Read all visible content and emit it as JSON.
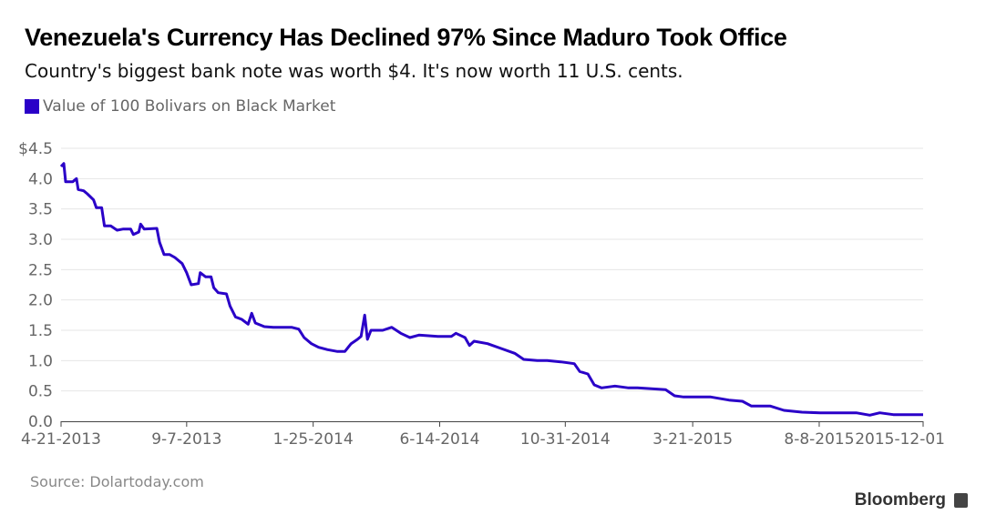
{
  "title": "Venezuela's Currency Has Declined 97% Since Maduro Took Office",
  "subtitle": "Country's biggest bank note was worth $4. It's now worth 11 U.S. cents.",
  "source": "Source: Dolartoday.com",
  "brand": "Bloomberg",
  "chart_data": {
    "type": "line",
    "title": "Venezuela's Currency Has Declined 97% Since Maduro Took Office",
    "xlabel": "",
    "ylabel": "",
    "x_unit": "days since 2013-04-21",
    "xlim": [
      0,
      954
    ],
    "ylim": [
      0,
      4.5
    ],
    "grid": true,
    "legend_placement": "top-left",
    "color": "#2a00c8",
    "yticks": [
      {
        "v": 0,
        "label": "0.0"
      },
      {
        "v": 0.5,
        "label": "0.5"
      },
      {
        "v": 1,
        "label": "1.0"
      },
      {
        "v": 1.5,
        "label": "1.5"
      },
      {
        "v": 2,
        "label": "2.0"
      },
      {
        "v": 2.5,
        "label": "2.5"
      },
      {
        "v": 3,
        "label": "3.0"
      },
      {
        "v": 3.5,
        "label": "3.5"
      },
      {
        "v": 4,
        "label": "4.0"
      },
      {
        "v": 4.5,
        "label": "$4.5"
      }
    ],
    "xticks": [
      {
        "v": 0,
        "label": "4-21-2013"
      },
      {
        "v": 139,
        "label": "9-7-2013"
      },
      {
        "v": 279,
        "label": "1-25-2014"
      },
      {
        "v": 419,
        "label": "6-14-2014"
      },
      {
        "v": 558,
        "label": "10-31-2014"
      },
      {
        "v": 699,
        "label": "3-21-2015"
      },
      {
        "v": 839,
        "label": "8-8-2015"
      },
      {
        "v": 954,
        "label": "2015-12-01"
      }
    ],
    "series": [
      {
        "name": "Value of 100 Bolivars on Black Market",
        "x": [
          0,
          3,
          5,
          13,
          17,
          19,
          25,
          29,
          36,
          39,
          45,
          48,
          55,
          62,
          69,
          77,
          80,
          86,
          88,
          92,
          106,
          109,
          114,
          120,
          126,
          134,
          139,
          144,
          152,
          154,
          160,
          166,
          169,
          174,
          183,
          187,
          193,
          200,
          207,
          211,
          215,
          225,
          235,
          255,
          263,
          269,
          277,
          285,
          295,
          306,
          314,
          321,
          328,
          332,
          336,
          339,
          343,
          356,
          366,
          376,
          386,
          396,
          417,
          432,
          437,
          447,
          452,
          457,
          472,
          487,
          502,
          512,
          527,
          538,
          553,
          568,
          574,
          583,
          590,
          598,
          613,
          628,
          638,
          669,
          679,
          689,
          699,
          719,
          739,
          754,
          764,
          785,
          800,
          820,
          840,
          880,
          895,
          906,
          921,
          954
        ],
        "values": [
          4.2,
          4.25,
          3.95,
          3.95,
          4.0,
          3.82,
          3.8,
          3.75,
          3.65,
          3.52,
          3.52,
          3.22,
          3.22,
          3.15,
          3.17,
          3.17,
          3.08,
          3.12,
          3.25,
          3.17,
          3.18,
          2.95,
          2.75,
          2.75,
          2.7,
          2.6,
          2.45,
          2.25,
          2.27,
          2.45,
          2.38,
          2.38,
          2.2,
          2.12,
          2.1,
          1.9,
          1.72,
          1.68,
          1.6,
          1.78,
          1.62,
          1.56,
          1.55,
          1.55,
          1.52,
          1.38,
          1.28,
          1.22,
          1.18,
          1.15,
          1.15,
          1.28,
          1.35,
          1.4,
          1.75,
          1.35,
          1.5,
          1.5,
          1.55,
          1.45,
          1.38,
          1.42,
          1.4,
          1.4,
          1.45,
          1.38,
          1.25,
          1.32,
          1.28,
          1.2,
          1.12,
          1.02,
          1.0,
          1.0,
          0.98,
          0.95,
          0.82,
          0.78,
          0.6,
          0.55,
          0.58,
          0.55,
          0.55,
          0.52,
          0.42,
          0.4,
          0.4,
          0.4,
          0.35,
          0.33,
          0.25,
          0.25,
          0.18,
          0.15,
          0.14,
          0.14,
          0.1,
          0.14,
          0.11,
          0.11
        ]
      }
    ]
  }
}
